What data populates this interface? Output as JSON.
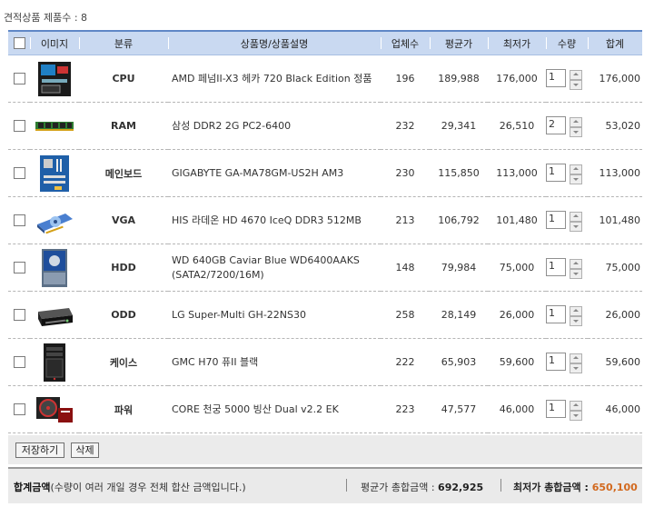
{
  "count_label": "견적상품 제품수 : 8",
  "headers": {
    "image": "이미지",
    "category": "분류",
    "name": "상품명/상품설명",
    "vendors": "업체수",
    "avg": "평균가",
    "min": "최저가",
    "qty": "수량",
    "total": "합계"
  },
  "rows": [
    {
      "category": "CPU",
      "name": "AMD 페넘II-X3 헤카 720 Black Edition 정품",
      "vendors": "196",
      "avg": "189,988",
      "min": "176,000",
      "qty": "1",
      "total": "176,000"
    },
    {
      "category": "RAM",
      "name": "삼성 DDR2 2G PC2-6400",
      "vendors": "232",
      "avg": "29,341",
      "min": "26,510",
      "qty": "2",
      "total": "53,020"
    },
    {
      "category": "메인보드",
      "name": "GIGABYTE GA-MA78GM-US2H AM3",
      "vendors": "230",
      "avg": "115,850",
      "min": "113,000",
      "qty": "1",
      "total": "113,000"
    },
    {
      "category": "VGA",
      "name": "HIS 라데온 HD 4670 IceQ DDR3 512MB",
      "vendors": "213",
      "avg": "106,792",
      "min": "101,480",
      "qty": "1",
      "total": "101,480"
    },
    {
      "category": "HDD",
      "name": "WD 640GB Caviar Blue WD6400AAKS",
      "name2": "(SATA2/7200/16M)",
      "vendors": "148",
      "avg": "79,984",
      "min": "75,000",
      "qty": "1",
      "total": "75,000"
    },
    {
      "category": "ODD",
      "name": "LG Super-Multi GH-22NS30",
      "vendors": "258",
      "avg": "28,149",
      "min": "26,000",
      "qty": "1",
      "total": "26,000"
    },
    {
      "category": "케이스",
      "name": "GMC H70 퓨II 블랙",
      "vendors": "222",
      "avg": "65,903",
      "min": "59,600",
      "qty": "1",
      "total": "59,600"
    },
    {
      "category": "파워",
      "name": "CORE 천궁 5000 빙산 Dual v2.2 EK",
      "vendors": "223",
      "avg": "47,577",
      "min": "46,000",
      "qty": "1",
      "total": "46,000"
    }
  ],
  "buttons": {
    "save": "저장하기",
    "delete": "삭제"
  },
  "summary": {
    "label_bold": "합계금액",
    "label_rest": "(수량이 여러 개일 경우 전체 합산 금액입니다.)",
    "avg_label": "평균가 총합금액 : ",
    "avg_value": "692,925",
    "min_label": "최저가 총합금액 : ",
    "min_value": "650,100"
  },
  "colors": {
    "header_bg": "#c9d9f1",
    "header_border": "#5f87c6",
    "min_price": "#b8860b",
    "min_total": "#d2691e"
  },
  "icons": [
    "cpu-box-icon",
    "ram-module-icon",
    "motherboard-icon",
    "graphics-card-icon",
    "hard-drive-icon",
    "optical-drive-icon",
    "pc-case-icon",
    "power-supply-icon"
  ]
}
